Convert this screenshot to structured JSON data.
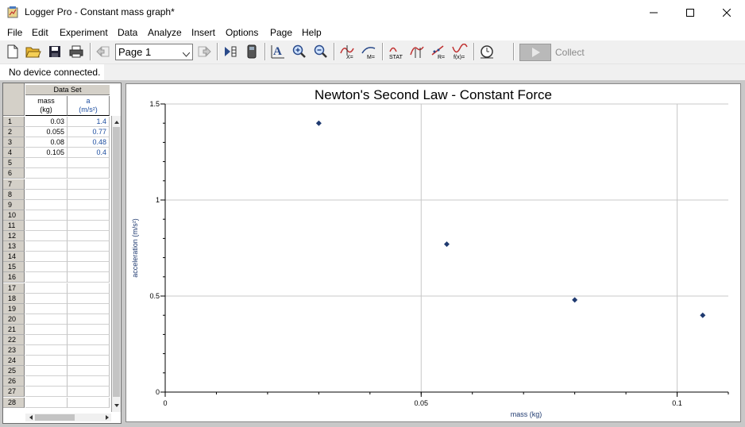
{
  "window": {
    "title": "Logger Pro - Constant mass graph*"
  },
  "menu": [
    "File",
    "Edit",
    "Experiment",
    "Data",
    "Analyze",
    "Insert",
    "Options",
    "Page",
    "Help"
  ],
  "toolbar": {
    "page_select": "Page 1",
    "collect_label": "Collect"
  },
  "status": {
    "device": "No device connected."
  },
  "table": {
    "dataset_title": "Data Set",
    "columns": [
      {
        "name": "mass",
        "unit": "(kg)"
      },
      {
        "name": "a",
        "unit": "(m/s²)"
      }
    ],
    "row_numbers": [
      "1",
      "2",
      "3",
      "4",
      "5",
      "6",
      "7",
      "8",
      "9",
      "10",
      "11",
      "12",
      "13",
      "14",
      "15",
      "16",
      "17",
      "18",
      "19",
      "20",
      "21",
      "22",
      "23",
      "24",
      "25",
      "26",
      "27",
      "28"
    ],
    "rows": [
      [
        "0.03",
        "1.4"
      ],
      [
        "0.055",
        "0.77"
      ],
      [
        "0.08",
        "0.48"
      ],
      [
        "0.105",
        "0.4"
      ]
    ]
  },
  "colors": {
    "point": "#1f3a70",
    "unit_col": "#1f4fa0",
    "grid": "#c8c8c8"
  },
  "chart_data": {
    "type": "scatter",
    "title": "Newton's Second Law - Constant Force",
    "xlabel": "mass (kg)",
    "ylabel": "acceleration (m/s²)",
    "xlim": [
      0,
      0.11
    ],
    "ylim": [
      0,
      1.5
    ],
    "xticks": [
      {
        "value": 0,
        "label": "0"
      },
      {
        "value": 0.05,
        "label": "0.05"
      },
      {
        "value": 0.1,
        "label": "0.1"
      }
    ],
    "yticks": [
      {
        "value": 0,
        "label": "0"
      },
      {
        "value": 0.5,
        "label": "0.5"
      },
      {
        "value": 1,
        "label": "1"
      },
      {
        "value": 1.5,
        "label": "1.5"
      }
    ],
    "grid": true,
    "points": [
      {
        "x": 0.03,
        "y": 1.4
      },
      {
        "x": 0.055,
        "y": 0.77
      },
      {
        "x": 0.08,
        "y": 0.48
      },
      {
        "x": 0.105,
        "y": 0.4
      }
    ]
  }
}
